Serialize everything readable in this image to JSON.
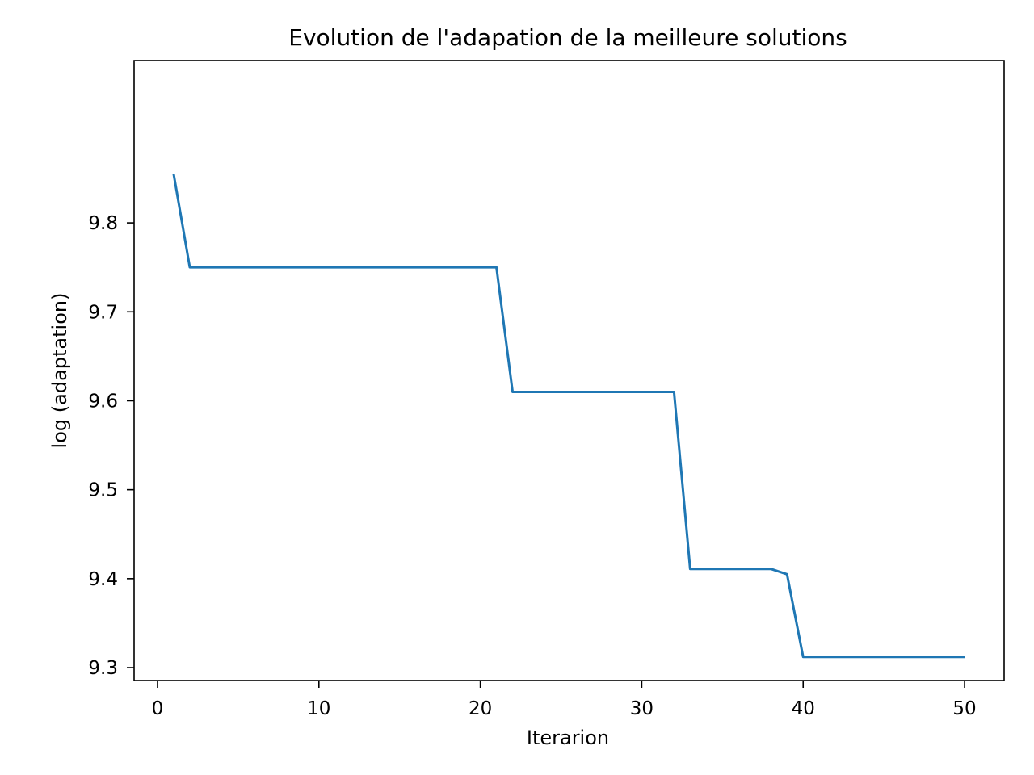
{
  "chart_data": {
    "type": "line",
    "title": "Evolution de l'adapation de la meilleure solutions",
    "xlabel": "Iterarion",
    "ylabel": "log (adaptation)",
    "xlim": [
      -1.45,
      52.45
    ],
    "ylim": [
      9.2855,
      9.9825
    ],
    "xticks": [
      0,
      10,
      20,
      30,
      40,
      50
    ],
    "xtick_labels": [
      "0",
      "10",
      "20",
      "30",
      "40",
      "50"
    ],
    "yticks": [
      9.3,
      9.4,
      9.5,
      9.6,
      9.7,
      9.8
    ],
    "ytick_labels": [
      "9.3",
      "9.4",
      "9.5",
      "9.6",
      "9.7",
      "9.8"
    ],
    "grid": false,
    "legend": false,
    "line_color": "#1f77b4",
    "x": [
      1,
      2,
      3,
      4,
      5,
      6,
      7,
      8,
      9,
      10,
      11,
      12,
      13,
      14,
      15,
      16,
      17,
      18,
      19,
      20,
      21,
      22,
      23,
      24,
      25,
      26,
      27,
      28,
      29,
      30,
      31,
      32,
      33,
      34,
      35,
      36,
      37,
      38,
      39,
      40,
      41,
      42,
      43,
      44,
      45,
      46,
      47,
      48,
      49,
      50
    ],
    "y": [
      9.855,
      9.75,
      9.75,
      9.75,
      9.75,
      9.75,
      9.75,
      9.75,
      9.75,
      9.75,
      9.75,
      9.75,
      9.75,
      9.75,
      9.75,
      9.75,
      9.75,
      9.75,
      9.75,
      9.75,
      9.75,
      9.61,
      9.61,
      9.61,
      9.61,
      9.61,
      9.61,
      9.61,
      9.61,
      9.61,
      9.61,
      9.61,
      9.411,
      9.411,
      9.411,
      9.411,
      9.411,
      9.411,
      9.405,
      9.312,
      9.312,
      9.312,
      9.312,
      9.312,
      9.312,
      9.312,
      9.312,
      9.312,
      9.312,
      9.312
    ]
  }
}
